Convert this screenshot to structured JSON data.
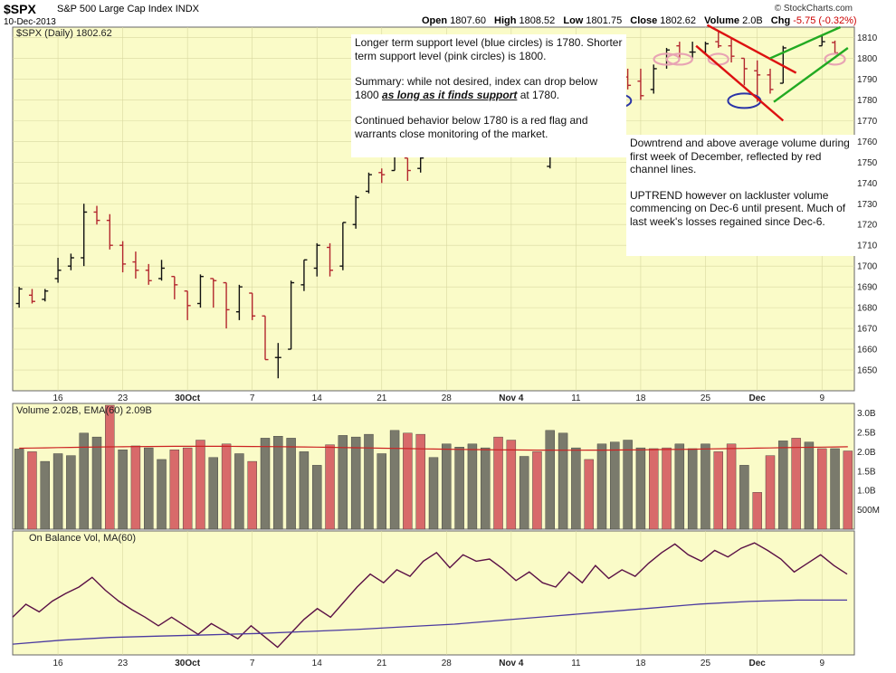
{
  "header": {
    "ticker": "$SPX",
    "name": "S&P 500 Large Cap Index",
    "exchange": "INDX",
    "date": "10-Dec-2013",
    "open_label": "Open",
    "open": "1807.60",
    "high_label": "High",
    "high": "1808.52",
    "low_label": "Low",
    "low": "1801.75",
    "close_label": "Close",
    "close": "1802.62",
    "volume_label": "Volume",
    "volume": "2.0B",
    "chg_label": "Chg",
    "chg": "-5.75 (-0.32%)",
    "brand": "© StockCharts.com"
  },
  "notes": {
    "n1_p1": "Longer term support level (blue circles) is 1780. Shorter term support level (pink circles) is 1800.",
    "n1_p2_a": "Summary:  while not desired, index can drop below 1800 ",
    "n1_p2_emph": "as long as it finds support",
    "n1_p2_b": " at 1780.",
    "n1_p3": "Continued behavior below 1780 is a red flag and warrants close monitoring of the market.",
    "n2_p1": "Downtrend and above average volume during first week of December, reflected by red channel lines.",
    "n2_p2": "UPTREND however on lackluster volume commencing on Dec-6 until present. Much of last week's losses regained since Dec-6."
  },
  "chart_data": [
    {
      "type": "ohlc",
      "legend": "$SPX (Daily) 1802.62",
      "ylim": [
        1640,
        1815
      ],
      "y_ticks": [
        1650,
        1660,
        1670,
        1680,
        1690,
        1700,
        1710,
        1720,
        1730,
        1740,
        1750,
        1760,
        1770,
        1780,
        1790,
        1800,
        1810
      ],
      "x_tick_labels": [
        "16",
        "23",
        "30Oct",
        "7",
        "14",
        "21",
        "28",
        "Nov 4",
        "11",
        "18",
        "25",
        "Dec",
        "9"
      ],
      "x_tick_index": [
        3,
        8,
        13,
        18,
        23,
        28,
        33,
        38,
        43,
        48,
        53,
        57,
        62
      ],
      "annotations": {
        "blue_circles_level": 1780,
        "pink_circles_level": 1800,
        "red_channel": "downtrend, first week of December",
        "green_channel": "uptrend since Dec-6"
      },
      "bars": [
        {
          "date": "Sep 11",
          "o": 1682,
          "h": 1690,
          "l": 1680,
          "c": 1689
        },
        {
          "date": "Sep 12",
          "o": 1686,
          "h": 1689,
          "l": 1682,
          "c": 1683
        },
        {
          "date": "Sep 13",
          "o": 1684,
          "h": 1689,
          "l": 1683,
          "c": 1688
        },
        {
          "date": "Sep 16",
          "o": 1694,
          "h": 1704,
          "l": 1692,
          "c": 1698
        },
        {
          "date": "Sep 17",
          "o": 1700,
          "h": 1706,
          "l": 1698,
          "c": 1704
        },
        {
          "date": "Sep 18",
          "o": 1704,
          "h": 1730,
          "l": 1700,
          "c": 1726
        },
        {
          "date": "Sep 19",
          "o": 1726,
          "h": 1729,
          "l": 1720,
          "c": 1722
        },
        {
          "date": "Sep 20",
          "o": 1722,
          "h": 1725,
          "l": 1708,
          "c": 1710
        },
        {
          "date": "Sep 23",
          "o": 1710,
          "h": 1712,
          "l": 1697,
          "c": 1701
        },
        {
          "date": "Sep 24",
          "o": 1702,
          "h": 1707,
          "l": 1694,
          "c": 1698
        },
        {
          "date": "Sep 25",
          "o": 1698,
          "h": 1701,
          "l": 1691,
          "c": 1693
        },
        {
          "date": "Sep 26",
          "o": 1694,
          "h": 1703,
          "l": 1693,
          "c": 1699
        },
        {
          "date": "Sep 27",
          "o": 1695,
          "h": 1695,
          "l": 1684,
          "c": 1691
        },
        {
          "date": "Sep 30",
          "o": 1688,
          "h": 1688,
          "l": 1674,
          "c": 1681
        },
        {
          "date": "Oct 1",
          "o": 1682,
          "h": 1696,
          "l": 1680,
          "c": 1695
        },
        {
          "date": "Oct 2",
          "o": 1694,
          "h": 1694,
          "l": 1680,
          "c": 1693
        },
        {
          "date": "Oct 3",
          "o": 1692,
          "h": 1692,
          "l": 1670,
          "c": 1679
        },
        {
          "date": "Oct 4",
          "o": 1678,
          "h": 1691,
          "l": 1674,
          "c": 1690
        },
        {
          "date": "Oct 7",
          "o": 1687,
          "h": 1687,
          "l": 1674,
          "c": 1676
        },
        {
          "date": "Oct 8",
          "o": 1676,
          "h": 1676,
          "l": 1655,
          "c": 1655
        },
        {
          "date": "Oct 9",
          "o": 1656,
          "h": 1663,
          "l": 1646,
          "c": 1656
        },
        {
          "date": "Oct 10",
          "o": 1660,
          "h": 1693,
          "l": 1660,
          "c": 1692
        },
        {
          "date": "Oct 11",
          "o": 1691,
          "h": 1703,
          "l": 1688,
          "c": 1703
        },
        {
          "date": "Oct 14",
          "o": 1699,
          "h": 1711,
          "l": 1695,
          "c": 1710
        },
        {
          "date": "Oct 15",
          "o": 1709,
          "h": 1711,
          "l": 1695,
          "c": 1698
        },
        {
          "date": "Oct 16",
          "o": 1700,
          "h": 1721,
          "l": 1698,
          "c": 1721
        },
        {
          "date": "Oct 17",
          "o": 1720,
          "h": 1734,
          "l": 1718,
          "c": 1733
        },
        {
          "date": "Oct 18",
          "o": 1736,
          "h": 1745,
          "l": 1735,
          "c": 1744
        },
        {
          "date": "Oct 21",
          "o": 1745,
          "h": 1747,
          "l": 1740,
          "c": 1744
        },
        {
          "date": "Oct 22",
          "o": 1746,
          "h": 1759,
          "l": 1746,
          "c": 1754
        },
        {
          "date": "Oct 23",
          "o": 1752,
          "h": 1752,
          "l": 1741,
          "c": 1746
        },
        {
          "date": "Oct 24",
          "o": 1747,
          "h": 1753,
          "l": 1745,
          "c": 1752
        },
        {
          "date": "Nov 8",
          "o": 1748,
          "h": 1771,
          "l": 1747,
          "c": 1770
        },
        {
          "date": "Nov 18",
          "o": 1799,
          "h": 1802,
          "l": 1788,
          "c": 1792
        },
        {
          "date": "Nov 19",
          "o": 1791,
          "h": 1795,
          "l": 1785,
          "c": 1787
        },
        {
          "date": "Nov 20",
          "o": 1789,
          "h": 1795,
          "l": 1780,
          "c": 1782
        },
        {
          "date": "Nov 21",
          "o": 1785,
          "h": 1797,
          "l": 1783,
          "c": 1795
        },
        {
          "date": "Nov 22",
          "o": 1797,
          "h": 1805,
          "l": 1795,
          "c": 1804
        },
        {
          "date": "Nov 25",
          "o": 1806,
          "h": 1808,
          "l": 1800,
          "c": 1802
        },
        {
          "date": "Nov 26",
          "o": 1803,
          "h": 1808,
          "l": 1800,
          "c": 1803
        },
        {
          "date": "Nov 27",
          "o": 1803,
          "h": 1808,
          "l": 1802,
          "c": 1807
        },
        {
          "date": "Nov 29",
          "o": 1808,
          "h": 1813,
          "l": 1805,
          "c": 1806
        },
        {
          "date": "Dec 2",
          "o": 1806,
          "h": 1810,
          "l": 1798,
          "c": 1801
        },
        {
          "date": "Dec 3",
          "o": 1800,
          "h": 1800,
          "l": 1787,
          "c": 1795
        },
        {
          "date": "Dec 4",
          "o": 1794,
          "h": 1799,
          "l": 1779,
          "c": 1792
        },
        {
          "date": "Dec 5",
          "o": 1792,
          "h": 1795,
          "l": 1783,
          "c": 1785
        },
        {
          "date": "Dec 6",
          "o": 1788,
          "h": 1806,
          "l": 1788,
          "c": 1805
        },
        {
          "date": "Dec 9",
          "o": 1806,
          "h": 1811,
          "l": 1806,
          "c": 1808
        },
        {
          "date": "Dec 10",
          "o": 1807.6,
          "h": 1808.52,
          "l": 1801.75,
          "c": 1802.62
        }
      ]
    },
    {
      "type": "bar",
      "legend": "Volume 2.02B, EMA(60) 2.09B",
      "ylabels": [
        "3.0B",
        "2.5B",
        "2.0B",
        "1.5B",
        "1.0B",
        "500M"
      ],
      "ylim": [
        0,
        3.2
      ],
      "ema60": 2.09,
      "values_bil": [
        2.07,
        2.0,
        1.75,
        1.95,
        1.9,
        2.48,
        2.38,
        3.2,
        2.05,
        2.15,
        2.1,
        1.8,
        2.05,
        2.1,
        2.3,
        1.85,
        2.2,
        1.95,
        1.75,
        2.35,
        2.4,
        2.35,
        2.0,
        1.65,
        2.18,
        2.42,
        2.38,
        2.45,
        1.95,
        2.55,
        2.48,
        2.45,
        1.85,
        2.2,
        2.12,
        2.2,
        2.1,
        2.38,
        2.3,
        1.88,
        2.0,
        2.55,
        2.48,
        2.1,
        1.8,
        2.2,
        2.25,
        2.3,
        2.1,
        2.08,
        2.1,
        2.2,
        2.08,
        2.2,
        2.0,
        2.2,
        1.65,
        0.95,
        1.9,
        2.28,
        2.35,
        2.25,
        2.08,
        2.08,
        2.02
      ],
      "down_days": [
        1,
        7,
        9,
        12,
        13,
        14,
        16,
        18,
        24,
        30,
        31,
        37,
        38,
        40,
        44,
        49,
        50,
        54,
        55,
        57,
        58,
        60,
        62,
        64
      ]
    },
    {
      "type": "line",
      "legend": "On Balance Vol, MA(60)",
      "series": [
        {
          "name": "On Balance Vol",
          "values": [
            0.3,
            0.42,
            0.35,
            0.45,
            0.52,
            0.58,
            0.67,
            0.55,
            0.45,
            0.37,
            0.3,
            0.22,
            0.3,
            0.22,
            0.14,
            0.24,
            0.17,
            0.1,
            0.22,
            0.12,
            0.02,
            0.15,
            0.28,
            0.38,
            0.3,
            0.44,
            0.58,
            0.7,
            0.62,
            0.74,
            0.68,
            0.82,
            0.9,
            0.76,
            0.88,
            0.82,
            0.84,
            0.75,
            0.64,
            0.72,
            0.62,
            0.58,
            0.72,
            0.62,
            0.78,
            0.66,
            0.74,
            0.68,
            0.8,
            0.9,
            0.98,
            0.88,
            0.82,
            0.92,
            0.86,
            0.94,
            0.99,
            0.92,
            0.84,
            0.72,
            0.8,
            0.88,
            0.78,
            0.7
          ]
        },
        {
          "name": "MA(60)",
          "values": [
            0.08,
            0.14,
            0.18,
            0.2,
            0.22,
            0.24,
            0.27,
            0.3,
            0.34,
            0.38,
            0.44,
            0.5,
            0.56,
            0.62,
            0.68,
            0.72,
            0.74,
            0.74
          ]
        }
      ],
      "x_tick_labels": [
        "16",
        "23",
        "30Oct",
        "7",
        "14",
        "21",
        "28",
        "Nov 4",
        "11",
        "18",
        "25",
        "Dec",
        "9"
      ]
    }
  ],
  "colors": {
    "plot_bg": "#fafbc8",
    "grid": "#d8d8a0",
    "up": "#111111",
    "down": "#b3272e",
    "vol_up": "#7a7a6c",
    "vol_down": "#d86a6a",
    "ema_line": "#cc2222",
    "obv_line": "#5a1045",
    "ma_line": "#4b3aa0",
    "blue_circle": "#2a34a8",
    "pink_circle": "#e8a4b4",
    "red_channel": "#dd1111",
    "green_channel": "#22aa22"
  }
}
